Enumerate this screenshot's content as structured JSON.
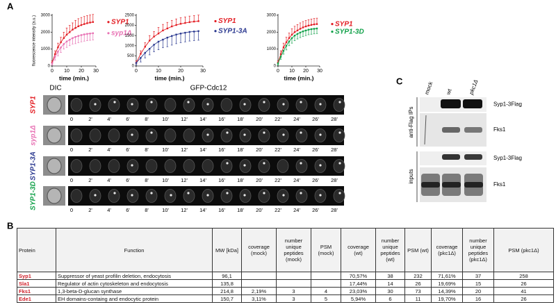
{
  "figure": {
    "panel_labels": [
      "A",
      "B",
      "C"
    ],
    "microscopy": {
      "dic_label": "DIC",
      "gfp_label": "GFP-Cdc12",
      "strains": [
        {
          "name": "SYP1",
          "color": "#e31e24"
        },
        {
          "name": "syp1Δ",
          "color": "#e872b4"
        },
        {
          "name": "SYP1-3A",
          "color": "#2b3990"
        },
        {
          "name": "SYP1-3D",
          "color": "#12a14a"
        }
      ],
      "timepoints": [
        "0",
        "2'",
        "4'",
        "6'",
        "8'",
        "10'",
        "12'",
        "14'",
        "16'",
        "18'",
        "20'",
        "22'",
        "24'",
        "26'",
        "28'"
      ]
    },
    "blot": {
      "lanes": [
        "mock",
        "wt",
        "pkc1Δ"
      ],
      "sections": [
        "anti-Flag IPs",
        "inputs"
      ],
      "bands": [
        "Syp1-3Flag",
        "Fks1"
      ]
    },
    "table": {
      "header": [
        "Protein",
        "Function",
        "MW [kDa]",
        "coverage (mock)",
        "number unique peptides (mock)",
        "PSM (mock)",
        "coverage (wt)",
        "number unique peptides (wt)",
        "PSM (wt)",
        "coverage (pkc1Δ)",
        "number unique peptides (pkc1Δ)",
        "PSM (pkc1Δ)"
      ],
      "rows": [
        [
          "Syp1",
          "Suppressor of yeast profilin deletion, endocytosis",
          "96,1",
          null,
          null,
          null,
          "70,57%",
          "38",
          "232",
          "71,61%",
          "37",
          "258"
        ],
        [
          "Sla1",
          "Regulator of actin cytoskeleton and endocytosis",
          "135,8",
          null,
          null,
          null,
          "17,44%",
          "14",
          "26",
          "19,69%",
          "15",
          "26"
        ],
        [
          "Fks1",
          "1,3-beta-D-glucan synthase",
          "214,8",
          "2,19%",
          "3",
          "4",
          "23,03%",
          "30",
          "73",
          "14,39%",
          "20",
          "41"
        ],
        [
          "Ede1",
          "EH domains-containg and endocytic protein",
          "150,7",
          "3,11%",
          "3",
          "5",
          "5,94%",
          "6",
          "11",
          "19,70%",
          "16",
          "26"
        ]
      ]
    }
  },
  "chart_data": [
    {
      "type": "line",
      "ylabel": "fluorescence intensity (a.u.)",
      "xlabel": "time (min.)",
      "x": [
        0,
        2,
        4,
        6,
        8,
        10,
        12,
        14,
        16,
        18,
        20,
        22,
        24,
        26,
        28
      ],
      "xlim": [
        0,
        30
      ],
      "xticks": [
        0,
        10,
        20,
        30
      ],
      "ylim": [
        0,
        3000
      ],
      "yticks": [
        0,
        1000,
        2000,
        3000
      ],
      "series": [
        {
          "name": "SYP1",
          "color": "#e31e24",
          "values": [
            200,
            700,
            1100,
            1400,
            1650,
            1850,
            2000,
            2150,
            2250,
            2350,
            2420,
            2480,
            2530,
            2570,
            2600
          ],
          "errors": [
            100,
            200,
            250,
            300,
            350,
            400,
            400,
            400,
            450,
            450,
            450,
            450,
            450,
            450,
            450
          ]
        },
        {
          "name": "syp1Δ",
          "color": "#e872b4",
          "values": [
            150,
            550,
            850,
            1100,
            1300,
            1450,
            1550,
            1650,
            1720,
            1780,
            1830,
            1870,
            1900,
            1920,
            1940
          ],
          "errors": [
            100,
            200,
            250,
            300,
            300,
            350,
            350,
            350,
            400,
            400,
            400,
            400,
            400,
            400,
            400
          ]
        }
      ]
    },
    {
      "type": "line",
      "xlabel": "time (min.)",
      "x": [
        0,
        2,
        4,
        6,
        8,
        10,
        12,
        14,
        16,
        18,
        20,
        22,
        24,
        26,
        28
      ],
      "xlim": [
        0,
        30
      ],
      "xticks": [
        0,
        10,
        20,
        30
      ],
      "ylim": [
        0,
        2500
      ],
      "yticks": [
        0,
        500,
        1000,
        1500,
        2000,
        2500
      ],
      "series": [
        {
          "name": "SYP1",
          "color": "#e31e24",
          "values": [
            150,
            600,
            950,
            1250,
            1450,
            1600,
            1750,
            1850,
            1950,
            2020,
            2080,
            2120,
            2160,
            2190,
            2210
          ],
          "errors": [
            100,
            150,
            200,
            250,
            250,
            300,
            300,
            300,
            300,
            300,
            300,
            300,
            300,
            300,
            300
          ]
        },
        {
          "name": "SYP1-3A",
          "color": "#2b3990",
          "values": [
            150,
            400,
            650,
            850,
            1050,
            1200,
            1300,
            1400,
            1480,
            1550,
            1600,
            1640,
            1680,
            1700,
            1720
          ],
          "errors": [
            100,
            200,
            250,
            300,
            350,
            400,
            400,
            450,
            450,
            450,
            450,
            450,
            450,
            450,
            450
          ]
        }
      ]
    },
    {
      "type": "line",
      "xlabel": "time (min.)",
      "x": [
        0,
        2,
        4,
        6,
        8,
        10,
        12,
        14,
        16,
        18,
        20,
        22,
        24,
        26,
        28
      ],
      "xlim": [
        0,
        30
      ],
      "xticks": [
        0,
        10,
        20,
        30
      ],
      "ylim": [
        0,
        3000
      ],
      "yticks": [
        0,
        1000,
        2000,
        3000
      ],
      "series": [
        {
          "name": "SYP1",
          "color": "#e31e24",
          "values": [
            200,
            700,
            1100,
            1400,
            1650,
            1850,
            2000,
            2100,
            2200,
            2280,
            2340,
            2390,
            2430,
            2460,
            2480
          ],
          "errors": [
            100,
            200,
            250,
            300,
            300,
            350,
            350,
            350,
            350,
            350,
            350,
            350,
            350,
            350,
            350
          ]
        },
        {
          "name": "SYP1-3D",
          "color": "#12a14a",
          "values": [
            150,
            550,
            900,
            1200,
            1450,
            1650,
            1800,
            1900,
            1980,
            2050,
            2100,
            2150,
            2180,
            2200,
            2220
          ],
          "errors": [
            100,
            150,
            200,
            250,
            250,
            300,
            300,
            300,
            300,
            300,
            300,
            300,
            300,
            300,
            300
          ]
        }
      ]
    }
  ]
}
